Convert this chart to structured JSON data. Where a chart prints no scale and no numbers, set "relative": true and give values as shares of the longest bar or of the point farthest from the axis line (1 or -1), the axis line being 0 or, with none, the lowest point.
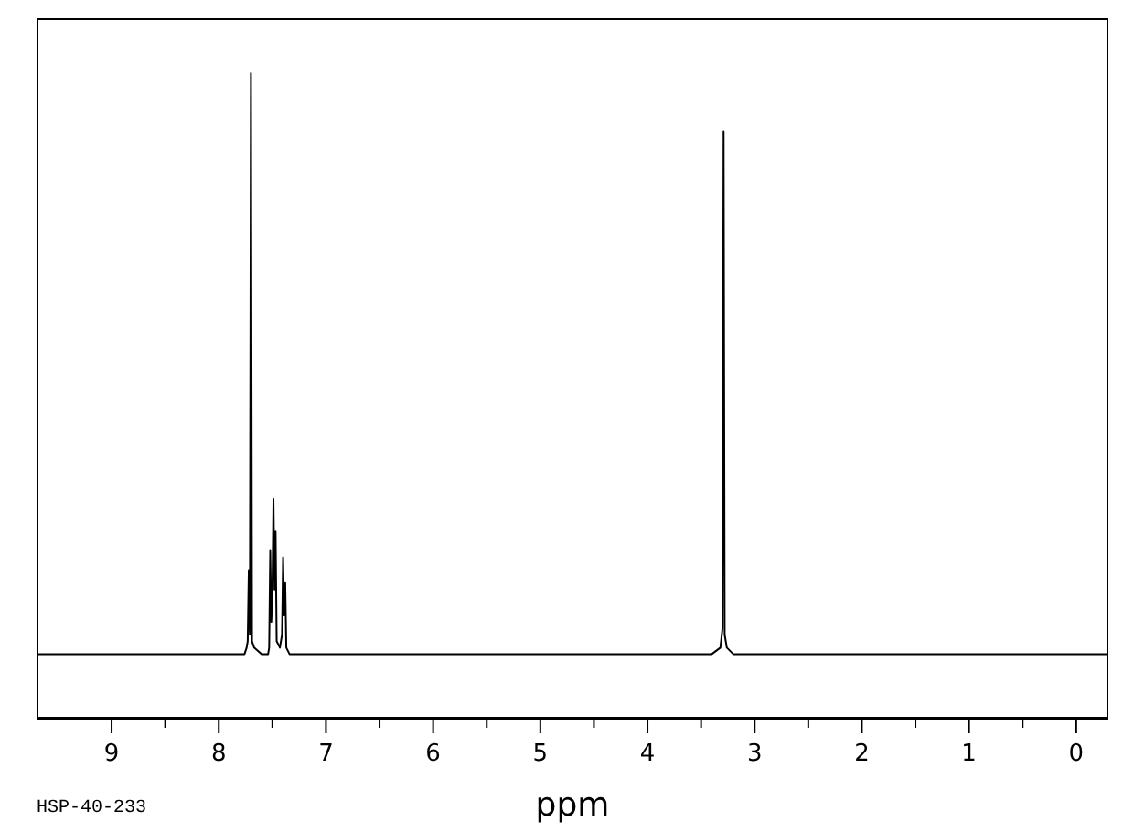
{
  "chart_data": {
    "type": "line",
    "relative": true,
    "xlabel": "ppm",
    "annotations": [
      "HSP-40-233"
    ],
    "color": "#000000",
    "x": [
      9.7,
      7.76,
      7.74,
      7.73,
      7.72,
      7.71,
      7.7,
      7.69,
      7.67,
      7.6,
      7.54,
      7.53,
      7.52,
      7.51,
      7.5,
      7.49,
      7.48,
      7.47,
      7.46,
      7.43,
      7.41,
      7.4,
      7.39,
      7.38,
      7.37,
      7.34,
      3.4,
      3.32,
      3.3,
      3.29,
      3.28,
      3.26,
      3.2,
      -0.3
    ],
    "values": [
      0.1,
      0.1,
      0.11,
      0.12,
      0.23,
      0.13,
      1.0,
      0.12,
      0.11,
      0.1,
      0.1,
      0.11,
      0.26,
      0.15,
      0.19,
      0.34,
      0.2,
      0.29,
      0.12,
      0.11,
      0.13,
      0.25,
      0.16,
      0.21,
      0.11,
      0.1,
      0.1,
      0.11,
      0.14,
      0.91,
      0.13,
      0.11,
      0.1,
      0.1
    ],
    "xlim": [
      9.7,
      -0.3
    ],
    "xticks": [
      9,
      {
        "value": 8.5,
        "label": null
      },
      8,
      {
        "value": 7.5,
        "label": null
      },
      7,
      {
        "value": 6.5,
        "label": null
      },
      6,
      {
        "value": 5.5,
        "label": null
      },
      5,
      {
        "value": 4.5,
        "label": null
      },
      4,
      {
        "value": 3.5,
        "label": null
      },
      3,
      {
        "value": 2.5,
        "label": null
      },
      2,
      {
        "value": 1.5,
        "label": null
      },
      1,
      {
        "value": 0.5,
        "label": null
      },
      0
    ]
  }
}
